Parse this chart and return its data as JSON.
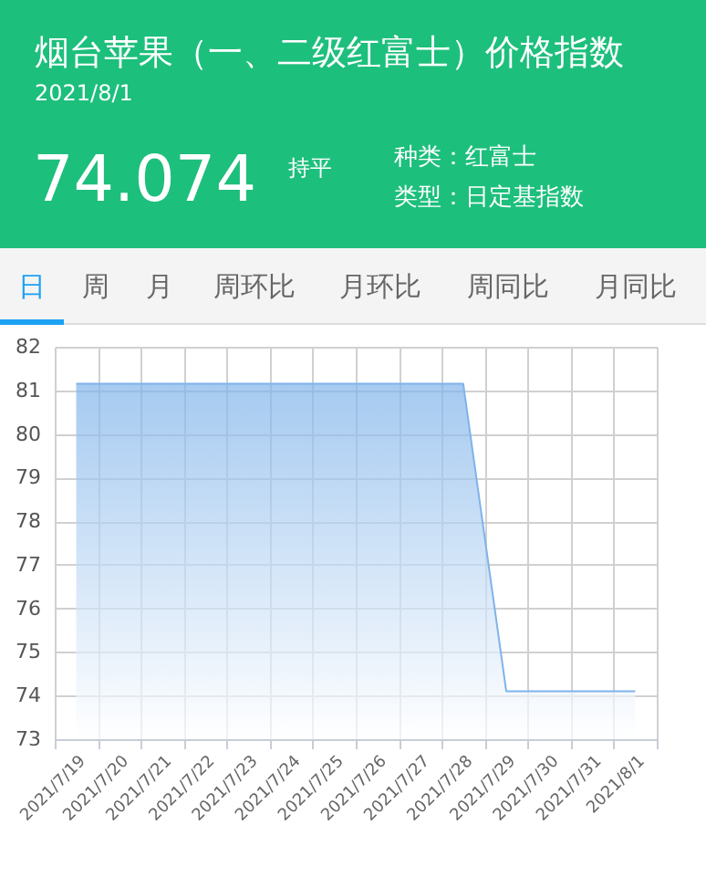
{
  "chart_data": {
    "type": "area",
    "title": "烟台苹果（一、二级红富士）价格指数",
    "subtitle": "2021/8/1",
    "annotations": [
      "74.074",
      "持平",
      "种类：红富士",
      "类型：日定基指数",
      "日",
      "周",
      "月",
      "周环比",
      "月环比",
      "周同比",
      "月同比"
    ],
    "categories": [
      "2021/7/19",
      "2021/7/20",
      "2021/7/21",
      "2021/7/22",
      "2021/7/23",
      "2021/7/24",
      "2021/7/25",
      "2021/7/26",
      "2021/7/27",
      "2021/7/28",
      "2021/7/29",
      "2021/7/30",
      "2021/7/31",
      "2021/8/1"
    ],
    "values": [
      81.15,
      81.15,
      81.15,
      81.15,
      81.15,
      81.15,
      81.15,
      81.15,
      81.15,
      81.15,
      74.1,
      74.1,
      74.1,
      74.1
    ],
    "color": "#7fb3ea",
    "ylim": [
      73,
      82
    ],
    "yticks": [
      73,
      74,
      75,
      76,
      77,
      78,
      79,
      80,
      81,
      82
    ],
    "grid": true
  }
}
